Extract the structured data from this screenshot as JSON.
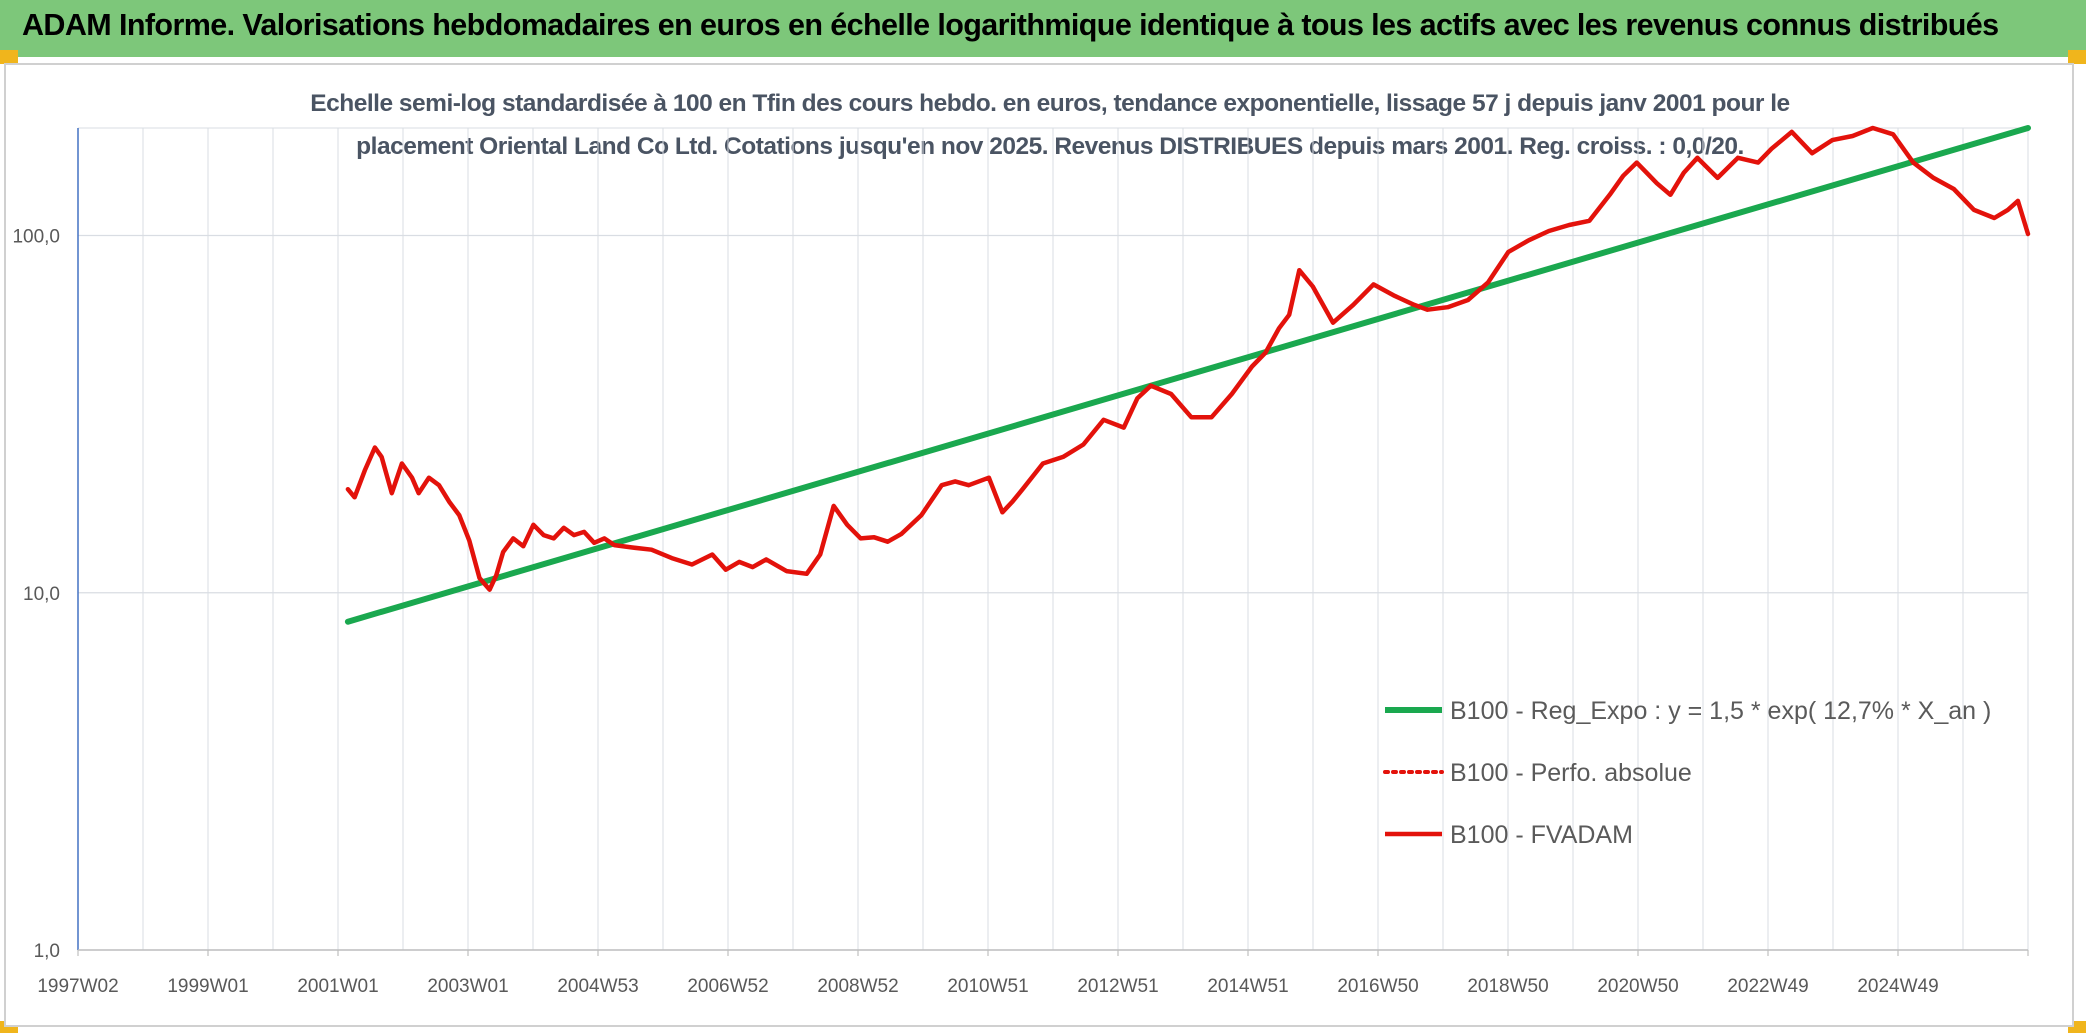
{
  "header": {
    "title": "ADAM Informe. Valorisations hebdomadaires en euros en échelle logarithmique identique à tous les actifs avec les revenus connus distribués"
  },
  "colors": {
    "banner": "#7dc77a",
    "corner_accent": "#f0b51c",
    "regression": "#1aa84f",
    "fvadam": "#e3120b",
    "perf_absolue": "#e3120b",
    "grid": "#d9dde3",
    "axis": "#4472c4"
  },
  "chart_data": {
    "type": "line",
    "title_line1": "Echelle semi-log standardisée à 100 en Tfin des cours hebdo. en euros, tendance exponentielle, lissage 57 j depuis janv 2001 pour le",
    "title_line2": "placement Oriental Land Co Ltd. Cotations jusqu'en nov 2025. Revenus DISTRIBUES depuis mars 2001. Reg. croiss. : 0,0/20.",
    "y_scale": "log",
    "ylim": [
      1,
      200
    ],
    "xlim": [
      1997.0,
      2025.9
    ],
    "grid": true,
    "legend_position": "right",
    "y_ticks": [
      {
        "value": 1,
        "label": "1,0"
      },
      {
        "value": 10,
        "label": "10,0"
      },
      {
        "value": 100,
        "label": "100,0"
      }
    ],
    "x_tick_labels": [
      "1997W02",
      "1999W01",
      "2001W01",
      "2003W01",
      "2004W53",
      "2006W52",
      "2008W52",
      "2010W51",
      "2012W51",
      "2014W51",
      "2016W50",
      "2018W50",
      "2020W50",
      "2022W49",
      "2024W49"
    ],
    "series": [
      {
        "name": "B100 - Reg_Expo : y = 1,5 * exp( 12,7% *  X_an )",
        "style": "solid",
        "color": "#1aa84f",
        "x": [
          2001.0,
          2025.9
        ],
        "y": [
          8.3,
          200
        ]
      },
      {
        "name": "B100 - Perfo. absolue",
        "style": "dotted",
        "color": "#e3120b",
        "x": [],
        "y": []
      },
      {
        "name": "B100 - FVADAM",
        "style": "solid",
        "color": "#e3120b",
        "x": [
          2001.0,
          2001.1,
          2001.25,
          2001.4,
          2001.5,
          2001.65,
          2001.8,
          2001.95,
          2002.05,
          2002.2,
          2002.35,
          2002.5,
          2002.65,
          2002.8,
          2002.95,
          2003.1,
          2003.2,
          2003.3,
          2003.45,
          2003.6,
          2003.75,
          2003.9,
          2004.05,
          2004.2,
          2004.35,
          2004.5,
          2004.65,
          2004.8,
          2004.95,
          2005.2,
          2005.5,
          2005.8,
          2006.1,
          2006.4,
          2006.6,
          2006.8,
          2007.0,
          2007.2,
          2007.5,
          2007.8,
          2008.0,
          2008.2,
          2008.4,
          2008.6,
          2008.8,
          2009.0,
          2009.2,
          2009.5,
          2009.8,
          2010.0,
          2010.2,
          2010.5,
          2010.7,
          2010.85,
          2011.0,
          2011.3,
          2011.6,
          2011.9,
          2012.2,
          2012.5,
          2012.7,
          2012.9,
          2013.2,
          2013.5,
          2013.8,
          2014.1,
          2014.4,
          2014.6,
          2014.8,
          2014.95,
          2015.1,
          2015.3,
          2015.6,
          2015.9,
          2016.2,
          2016.5,
          2016.8,
          2017.0,
          2017.3,
          2017.6,
          2017.9,
          2018.2,
          2018.5,
          2018.8,
          2019.1,
          2019.4,
          2019.7,
          2019.9,
          2020.1,
          2020.4,
          2020.6,
          2020.8,
          2021.0,
          2021.3,
          2021.6,
          2021.9,
          2022.1,
          2022.4,
          2022.7,
          2023.0,
          2023.3,
          2023.6,
          2023.9,
          2024.2,
          2024.5,
          2024.8,
          2025.1,
          2025.4,
          2025.6,
          2025.75,
          2025.9
        ],
        "y": [
          19.5,
          18.5,
          22,
          25.5,
          24,
          19,
          23,
          21,
          19,
          21,
          20,
          18,
          16.5,
          14,
          11,
          10.2,
          11.2,
          13,
          14.2,
          13.5,
          15.5,
          14.5,
          14.2,
          15.2,
          14.5,
          14.8,
          13.8,
          14.2,
          13.6,
          13.4,
          13.2,
          12.5,
          12,
          12.8,
          11.6,
          12.2,
          11.8,
          12.4,
          11.5,
          11.3,
          12.8,
          17.5,
          15.5,
          14.2,
          14.3,
          13.9,
          14.6,
          16.5,
          20,
          20.5,
          20,
          21,
          16.8,
          18,
          19.5,
          23,
          24,
          26,
          30.5,
          29,
          35,
          38,
          36,
          31,
          31,
          36,
          43,
          47,
          55,
          60,
          80,
          72,
          57,
          64,
          73,
          68,
          64,
          62,
          63,
          66,
          74,
          90,
          97,
          103,
          107,
          110,
          130,
          147,
          160,
          140,
          130,
          150,
          165,
          145,
          165,
          160,
          175,
          195,
          170,
          185,
          190,
          200,
          192,
          160,
          145,
          135,
          118,
          112,
          118,
          125,
          101
        ]
      }
    ]
  }
}
